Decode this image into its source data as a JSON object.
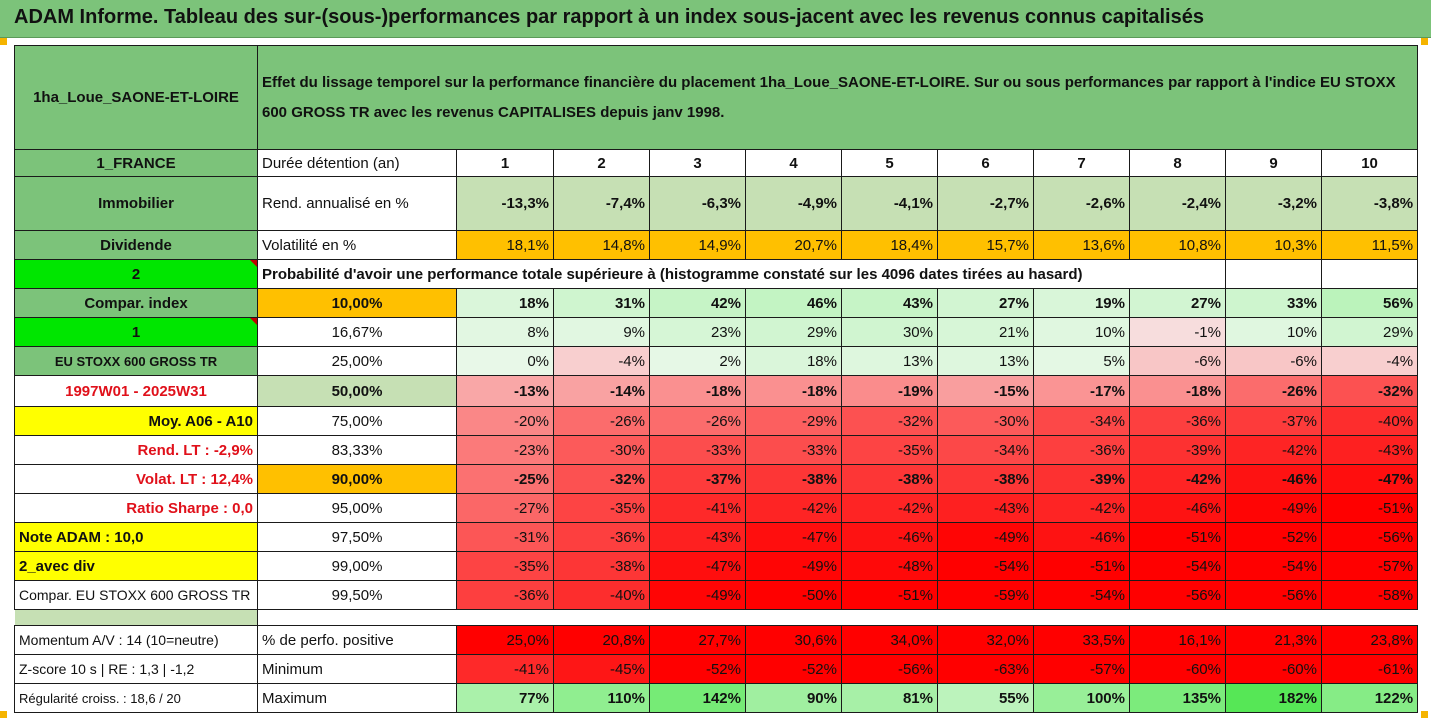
{
  "title": "ADAM Informe. Tableau des sur-(sous-)performances par rapport à un index sous-jacent avec les revenus connus capitalisés",
  "header": {
    "asset_name": "1ha_Loue_SAONE-ET-LOIRE",
    "description": "Effet du lissage temporel sur la performance financière du placement 1ha_Loue_SAONE-ET-LOIRE. Sur ou sous performances par rapport à l'indice EU STOXX 600 GROSS TR avec les revenus CAPITALISES depuis janv 1998."
  },
  "colors": {
    "header_green": "#7cc37a",
    "light_green": "#c6e0b4",
    "bright_green": "#00e600",
    "yellow": "#ffff00",
    "orange": "#ffc000",
    "red": "#ff0000",
    "red_text": "#e0101a"
  },
  "left_labels": [
    "1_FRANCE",
    "Immobilier",
    "Dividende",
    "2",
    "Compar. index",
    "1",
    "EU STOXX 600 GROSS TR",
    "1997W01 - 2025W31",
    "Moy. A06 - A10",
    "Rend. LT :   -2,9%",
    "Volat. LT :   12,4%",
    "Ratio Sharpe :    0,0",
    "Note ADAM : 10,0",
    "2_avec div",
    "Compar. EU STOXX 600 GROSS TR"
  ],
  "durations": {
    "label": "Durée détention (an)",
    "values": [
      "1",
      "2",
      "3",
      "4",
      "5",
      "6",
      "7",
      "8",
      "9",
      "10"
    ]
  },
  "annualized_return": {
    "label": "Rend. annualisé en %",
    "values": [
      "-13,3%",
      "-7,4%",
      "-6,3%",
      "-4,9%",
      "-4,1%",
      "-2,7%",
      "-2,6%",
      "-2,4%",
      "-3,2%",
      "-3,8%"
    ]
  },
  "volatility": {
    "label": "Volatilité en %",
    "values": [
      "18,1%",
      "14,8%",
      "14,9%",
      "20,7%",
      "18,4%",
      "15,7%",
      "13,6%",
      "10,8%",
      "10,3%",
      "11,5%"
    ]
  },
  "probability_title": "Probabilité d'avoir une performance totale supérieure à (histogramme constaté sur les 4096 dates tirées au hasard)",
  "quantiles": [
    {
      "label": "10,00%",
      "values": [
        "18%",
        "31%",
        "42%",
        "46%",
        "43%",
        "27%",
        "19%",
        "27%",
        "33%",
        "56%"
      ]
    },
    {
      "label": "16,67%",
      "values": [
        "8%",
        "9%",
        "23%",
        "29%",
        "30%",
        "21%",
        "10%",
        "-1%",
        "10%",
        "29%"
      ]
    },
    {
      "label": "25,00%",
      "values": [
        "0%",
        "-4%",
        "2%",
        "18%",
        "13%",
        "13%",
        "5%",
        "-6%",
        "-6%",
        "-4%"
      ]
    },
    {
      "label": "50,00%",
      "values": [
        "-13%",
        "-14%",
        "-18%",
        "-18%",
        "-19%",
        "-15%",
        "-17%",
        "-18%",
        "-26%",
        "-32%"
      ]
    },
    {
      "label": "75,00%",
      "values": [
        "-20%",
        "-26%",
        "-26%",
        "-29%",
        "-32%",
        "-30%",
        "-34%",
        "-36%",
        "-37%",
        "-40%"
      ]
    },
    {
      "label": "83,33%",
      "values": [
        "-23%",
        "-30%",
        "-33%",
        "-33%",
        "-35%",
        "-34%",
        "-36%",
        "-39%",
        "-42%",
        "-43%"
      ]
    },
    {
      "label": "90,00%",
      "values": [
        "-25%",
        "-32%",
        "-37%",
        "-38%",
        "-38%",
        "-38%",
        "-39%",
        "-42%",
        "-46%",
        "-47%"
      ]
    },
    {
      "label": "95,00%",
      "values": [
        "-27%",
        "-35%",
        "-41%",
        "-42%",
        "-42%",
        "-43%",
        "-42%",
        "-46%",
        "-49%",
        "-51%"
      ]
    },
    {
      "label": "97,50%",
      "values": [
        "-31%",
        "-36%",
        "-43%",
        "-47%",
        "-46%",
        "-49%",
        "-46%",
        "-51%",
        "-52%",
        "-56%"
      ]
    },
    {
      "label": "99,00%",
      "values": [
        "-35%",
        "-38%",
        "-47%",
        "-49%",
        "-48%",
        "-54%",
        "-51%",
        "-54%",
        "-54%",
        "-57%"
      ]
    },
    {
      "label": "99,50%",
      "values": [
        "-36%",
        "-40%",
        "-49%",
        "-50%",
        "-51%",
        "-59%",
        "-54%",
        "-56%",
        "-56%",
        "-58%"
      ]
    }
  ],
  "footer": [
    {
      "left": "Momentum A/V : 14 (10=neutre)",
      "label": "% de perfo. positive",
      "values": [
        "25,0%",
        "20,8%",
        "27,7%",
        "30,6%",
        "34,0%",
        "32,0%",
        "33,5%",
        "16,1%",
        "21,3%",
        "23,8%"
      ]
    },
    {
      "left": "Z-score 10 s  | RE : 1,3  | -1,2",
      "label": "Minimum",
      "values": [
        "-41%",
        "-45%",
        "-52%",
        "-52%",
        "-56%",
        "-63%",
        "-57%",
        "-60%",
        "-60%",
        "-61%"
      ]
    },
    {
      "left": "Régularité croiss. : 18,6 / 20",
      "label": "Maximum",
      "values": [
        "77%",
        "110%",
        "142%",
        "90%",
        "81%",
        "55%",
        "100%",
        "135%",
        "182%",
        "122%"
      ]
    }
  ]
}
